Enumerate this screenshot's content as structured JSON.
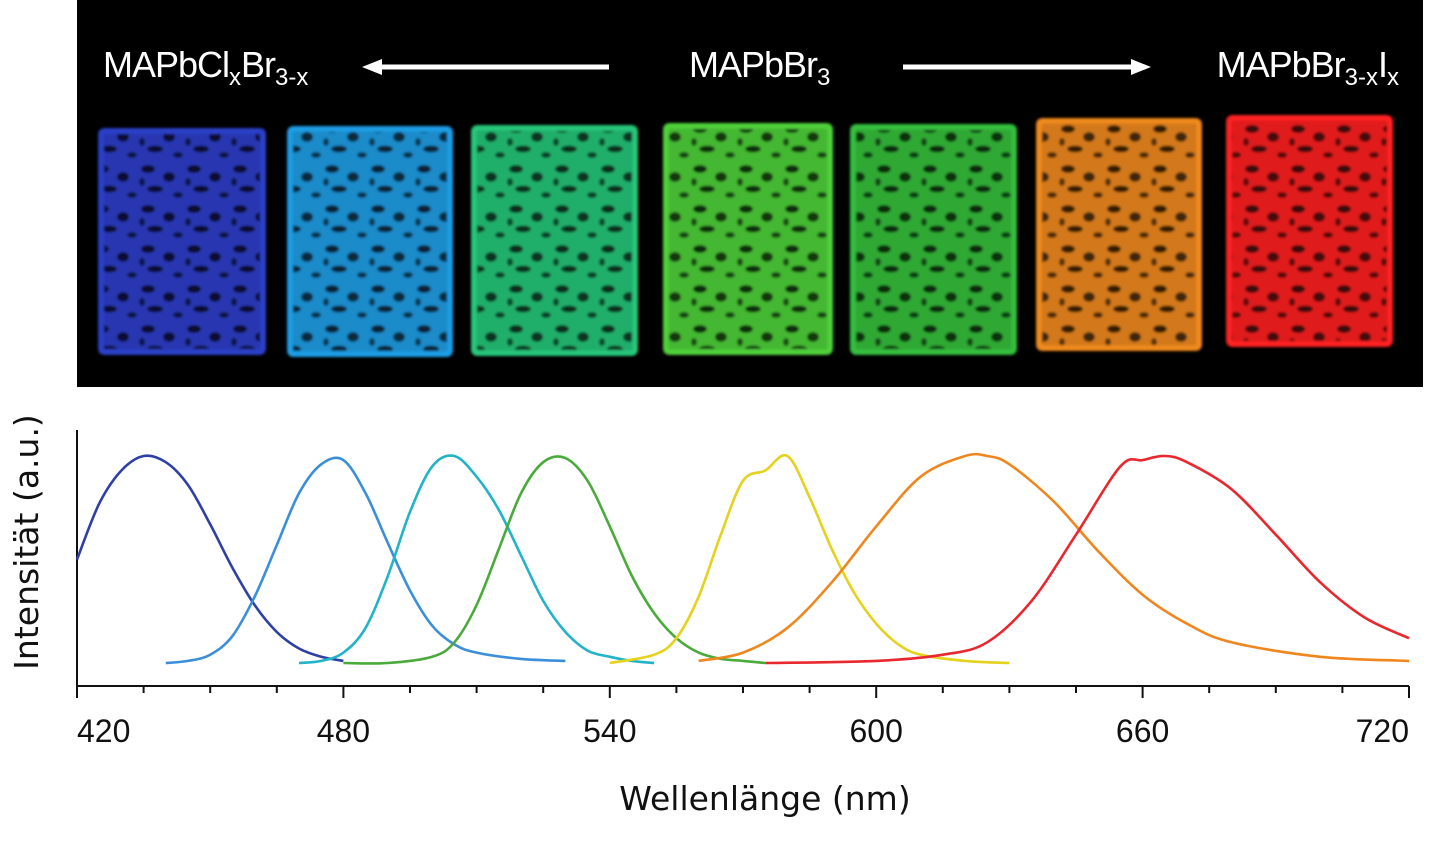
{
  "photo": {
    "left_formula": {
      "base": "MAPbCl",
      "s1": "x",
      "mid": "Br",
      "s2": "3-x"
    },
    "center_formula": {
      "base": "MAPbBr",
      "s1": "3"
    },
    "right_formula": {
      "base": "MAPbBr",
      "s1": "3-x",
      "mid": "I",
      "s2": "x"
    },
    "film_colors": [
      "#2c3fc9",
      "#1e9ee6",
      "#27c77a",
      "#4fd23a",
      "#35c03c",
      "#f08a1c",
      "#ff2020"
    ]
  },
  "chart_data": {
    "type": "line",
    "xlabel": "Wellenlänge (nm)",
    "ylabel": "Intensität (a.u.)",
    "xlim": [
      420,
      720
    ],
    "ylim": [
      0,
      1
    ],
    "xticks": [
      420,
      480,
      540,
      600,
      660,
      720
    ],
    "grid": false,
    "series": [
      {
        "color": "#2e3fa6",
        "x": [
          420,
          425,
          430,
          435,
          440,
          445,
          450,
          455,
          460,
          465,
          470,
          475,
          480
        ],
        "y": [
          0.5,
          0.77,
          0.93,
          1.0,
          0.97,
          0.86,
          0.67,
          0.46,
          0.28,
          0.15,
          0.07,
          0.03,
          0.01
        ]
      },
      {
        "color": "#3b8fd8",
        "x": [
          440,
          445,
          450,
          455,
          460,
          465,
          470,
          475,
          480,
          485,
          490,
          495,
          500,
          505,
          510,
          520,
          530
        ],
        "y": [
          0.0,
          0.01,
          0.04,
          0.13,
          0.32,
          0.57,
          0.82,
          0.96,
          0.98,
          0.82,
          0.58,
          0.35,
          0.18,
          0.09,
          0.05,
          0.02,
          0.01
        ]
      },
      {
        "color": "#22b4c6",
        "x": [
          470,
          475,
          480,
          485,
          490,
          495,
          500,
          505,
          510,
          515,
          520,
          525,
          530,
          535,
          540,
          545,
          550
        ],
        "y": [
          0.0,
          0.01,
          0.05,
          0.17,
          0.42,
          0.73,
          0.95,
          1.0,
          0.9,
          0.74,
          0.52,
          0.3,
          0.15,
          0.06,
          0.03,
          0.01,
          0.0
        ]
      },
      {
        "color": "#4aaa3a",
        "x": [
          480,
          490,
          500,
          505,
          510,
          515,
          520,
          525,
          530,
          535,
          540,
          545,
          550,
          555,
          560,
          565,
          570,
          575
        ],
        "y": [
          0.0,
          0.0,
          0.03,
          0.1,
          0.28,
          0.55,
          0.82,
          0.97,
          0.99,
          0.88,
          0.66,
          0.42,
          0.24,
          0.12,
          0.05,
          0.02,
          0.01,
          0.0
        ]
      },
      {
        "color": "#e4d21c",
        "x": [
          540,
          550,
          555,
          560,
          565,
          570,
          575,
          580,
          585,
          590,
          595,
          600,
          605,
          610,
          620,
          630
        ],
        "y": [
          0.0,
          0.04,
          0.12,
          0.32,
          0.62,
          0.88,
          0.93,
          1.0,
          0.8,
          0.55,
          0.34,
          0.19,
          0.09,
          0.04,
          0.01,
          0.0
        ]
      },
      {
        "color": "#f0861e",
        "x": [
          560,
          570,
          580,
          590,
          600,
          610,
          620,
          625,
          630,
          640,
          650,
          660,
          670,
          680,
          700,
          720
        ],
        "y": [
          0.01,
          0.05,
          0.17,
          0.39,
          0.66,
          0.9,
          1.0,
          1.0,
          0.96,
          0.78,
          0.54,
          0.33,
          0.19,
          0.1,
          0.03,
          0.01
        ]
      },
      {
        "color": "#e8282e",
        "x": [
          575,
          600,
          615,
          625,
          635,
          645,
          655,
          660,
          665,
          670,
          680,
          690,
          700,
          710,
          720
        ],
        "y": [
          0.0,
          0.01,
          0.04,
          0.1,
          0.3,
          0.62,
          0.95,
          0.98,
          1.0,
          0.97,
          0.84,
          0.62,
          0.39,
          0.22,
          0.12
        ]
      }
    ]
  }
}
